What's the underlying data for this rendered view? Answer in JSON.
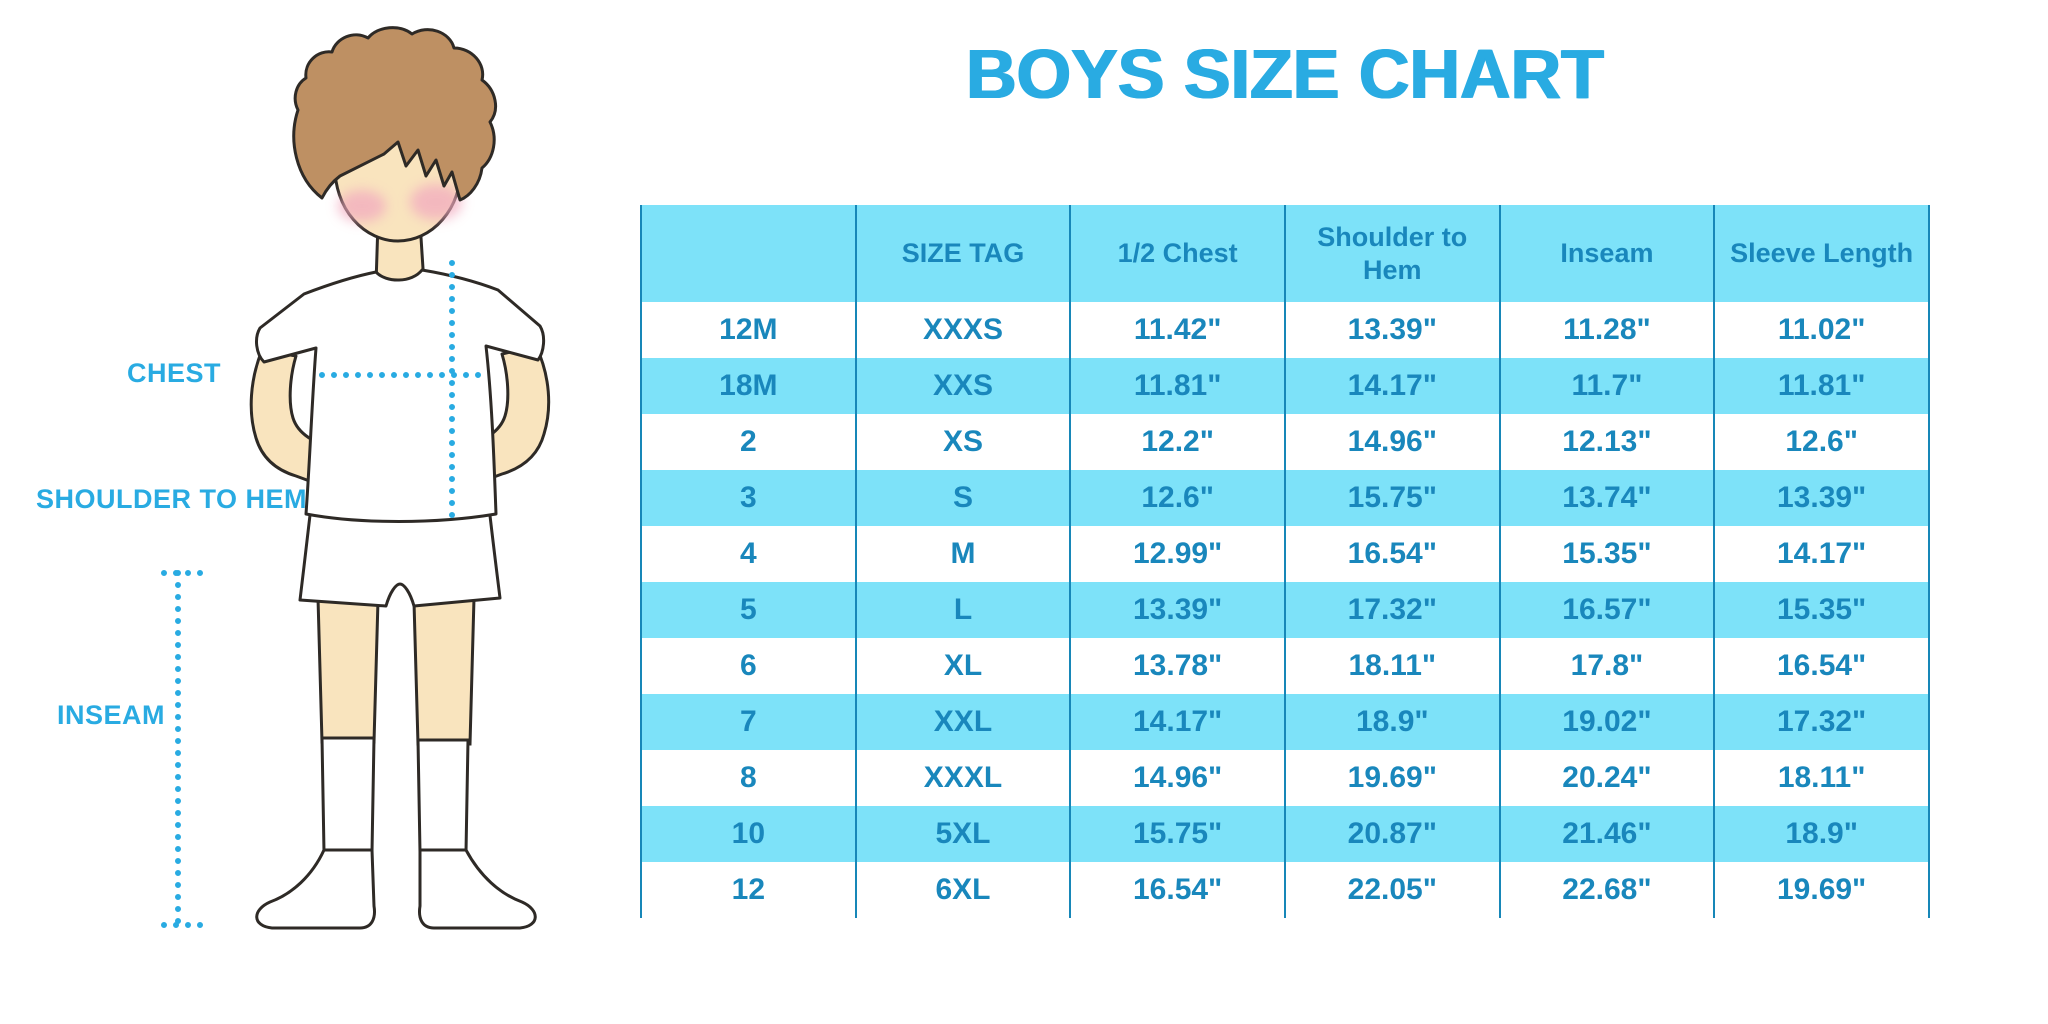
{
  "title": "BOYS SIZE CHART",
  "figure_labels": {
    "chest": "CHEST",
    "shoulder_to_hem": "SHOULDER TO HEM",
    "inseam": "INSEAM"
  },
  "colors": {
    "accent_blue": "#29ABE2",
    "band_blue": "#7DE2F9",
    "table_text_blue": "#1987BC",
    "divider_blue": "#1787B8",
    "skin": "#F9E4BE",
    "hair": "#BE9063",
    "blush": "#F2AABF",
    "outline": "#2E2A26"
  },
  "chart_data": {
    "type": "table",
    "title": "BOYS SIZE CHART",
    "columns": [
      "",
      "SIZE TAG",
      "1/2 Chest",
      "Shoulder to Hem",
      "Inseam",
      "Sleeve Length"
    ],
    "rows": [
      [
        "12M",
        "XXXS",
        "11.42\"",
        "13.39\"",
        "11.28\"",
        "11.02\""
      ],
      [
        "18M",
        "XXS",
        "11.81\"",
        "14.17\"",
        "11.7\"",
        "11.81\""
      ],
      [
        "2",
        "XS",
        "12.2\"",
        "14.96\"",
        "12.13\"",
        "12.6\""
      ],
      [
        "3",
        "S",
        "12.6\"",
        "15.75\"",
        "13.74\"",
        "13.39\""
      ],
      [
        "4",
        "M",
        "12.99\"",
        "16.54\"",
        "15.35\"",
        "14.17\""
      ],
      [
        "5",
        "L",
        "13.39\"",
        "17.32\"",
        "16.57\"",
        "15.35\""
      ],
      [
        "6",
        "XL",
        "13.78\"",
        "18.11\"",
        "17.8\"",
        "16.54\""
      ],
      [
        "7",
        "XXL",
        "14.17\"",
        "18.9\"",
        "19.02\"",
        "17.32\""
      ],
      [
        "8",
        "XXXL",
        "14.96\"",
        "19.69\"",
        "20.24\"",
        "18.11\""
      ],
      [
        "10",
        "5XL",
        "15.75\"",
        "20.87\"",
        "21.46\"",
        "18.9\""
      ],
      [
        "12",
        "6XL",
        "16.54\"",
        "22.05\"",
        "22.68\"",
        "19.69\""
      ]
    ]
  }
}
